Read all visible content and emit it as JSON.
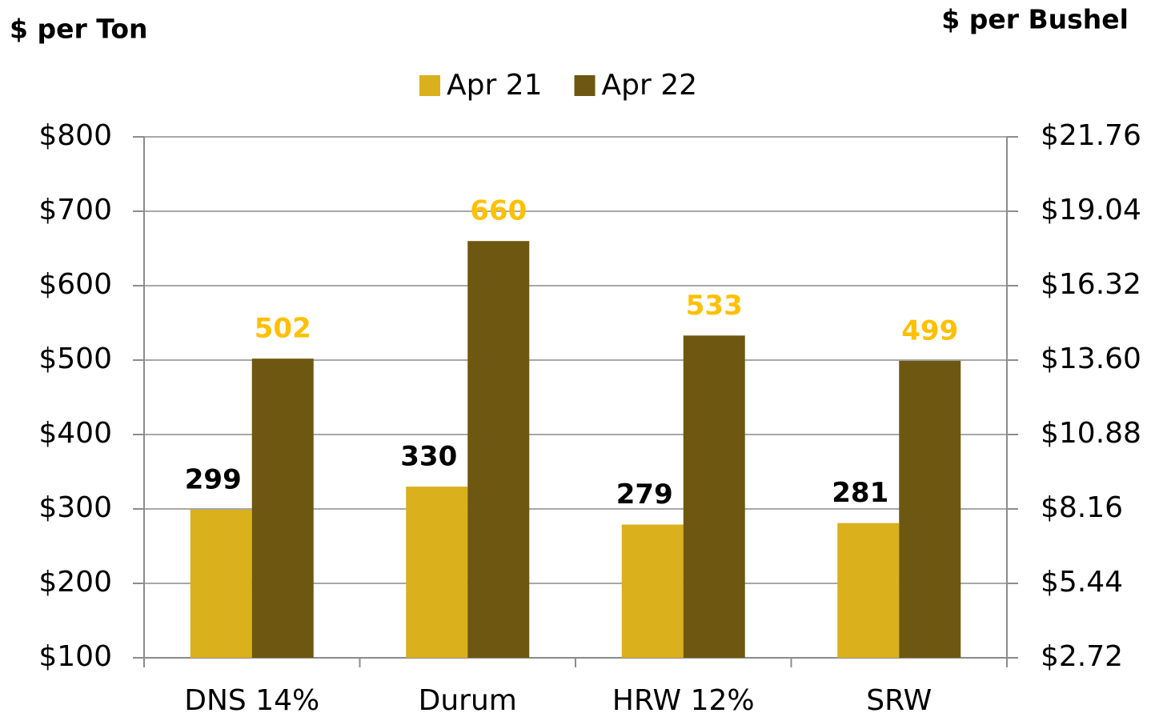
{
  "chart_data": {
    "type": "bar",
    "y_label": "$ per Ton",
    "y2_label": "$ per Bushel",
    "categories": [
      "DNS 14%",
      "Durum",
      "HRW 12%",
      "SRW"
    ],
    "series": [
      {
        "name": "Apr 21",
        "color": "#dab01c",
        "label_color": "#000000",
        "values": [
          299,
          330,
          279,
          281
        ]
      },
      {
        "name": "Apr 22",
        "color": "#6e5710",
        "label_color": "#ffc000",
        "values": [
          502,
          660,
          533,
          499
        ]
      }
    ],
    "ylim": [
      100,
      800
    ],
    "yticks": [
      {
        "value": 100,
        "label": "$100"
      },
      {
        "value": 200,
        "label": "$200"
      },
      {
        "value": 300,
        "label": "$300"
      },
      {
        "value": 400,
        "label": "$400"
      },
      {
        "value": 500,
        "label": "$500"
      },
      {
        "value": 600,
        "label": "$600"
      },
      {
        "value": 700,
        "label": "$700"
      },
      {
        "value": 800,
        "label": "$800"
      }
    ],
    "y2lim": [
      2.72,
      21.76
    ],
    "y2ticks": [
      {
        "value": 2.72,
        "label": "$2.72"
      },
      {
        "value": 5.44,
        "label": "$5.44"
      },
      {
        "value": 8.16,
        "label": "$8.16"
      },
      {
        "value": 10.88,
        "label": "$10.88"
      },
      {
        "value": 13.6,
        "label": "$13.60"
      },
      {
        "value": 16.32,
        "label": "$16.32"
      },
      {
        "value": 19.04,
        "label": "$19.04"
      },
      {
        "value": 21.76,
        "label": "$21.76"
      }
    ],
    "grid": true,
    "legend": "top"
  }
}
